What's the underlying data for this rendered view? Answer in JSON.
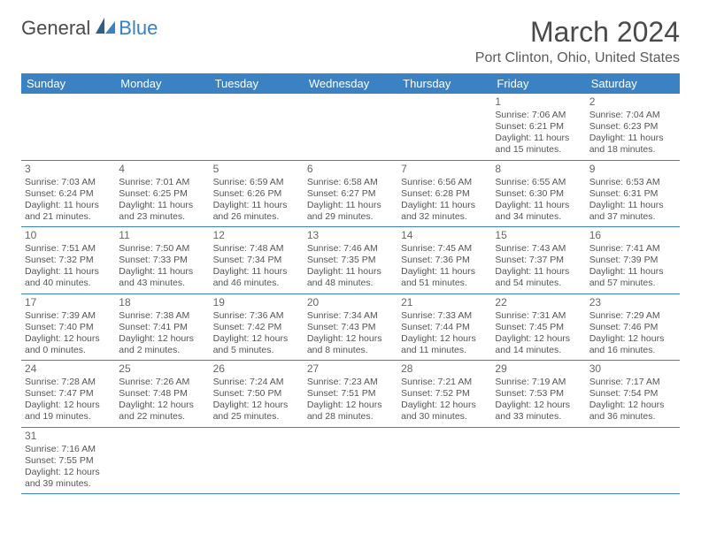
{
  "brand": {
    "text1": "General",
    "text2": "Blue"
  },
  "title": "March 2024",
  "location": "Port Clinton, Ohio, United States",
  "weekdays": [
    "Sunday",
    "Monday",
    "Tuesday",
    "Wednesday",
    "Thursday",
    "Friday",
    "Saturday"
  ],
  "colors": {
    "header_bg": "#3b82c4",
    "header_text": "#ffffff",
    "border": "#3b82c4",
    "title_color": "#4a4a4a",
    "text_color": "#555555"
  },
  "weeks": [
    [
      null,
      null,
      null,
      null,
      null,
      {
        "n": "1",
        "sr": "7:06 AM",
        "ss": "6:21 PM",
        "dl": "11 hours and 15 minutes."
      },
      {
        "n": "2",
        "sr": "7:04 AM",
        "ss": "6:23 PM",
        "dl": "11 hours and 18 minutes."
      }
    ],
    [
      {
        "n": "3",
        "sr": "7:03 AM",
        "ss": "6:24 PM",
        "dl": "11 hours and 21 minutes."
      },
      {
        "n": "4",
        "sr": "7:01 AM",
        "ss": "6:25 PM",
        "dl": "11 hours and 23 minutes."
      },
      {
        "n": "5",
        "sr": "6:59 AM",
        "ss": "6:26 PM",
        "dl": "11 hours and 26 minutes."
      },
      {
        "n": "6",
        "sr": "6:58 AM",
        "ss": "6:27 PM",
        "dl": "11 hours and 29 minutes."
      },
      {
        "n": "7",
        "sr": "6:56 AM",
        "ss": "6:28 PM",
        "dl": "11 hours and 32 minutes."
      },
      {
        "n": "8",
        "sr": "6:55 AM",
        "ss": "6:30 PM",
        "dl": "11 hours and 34 minutes."
      },
      {
        "n": "9",
        "sr": "6:53 AM",
        "ss": "6:31 PM",
        "dl": "11 hours and 37 minutes."
      }
    ],
    [
      {
        "n": "10",
        "sr": "7:51 AM",
        "ss": "7:32 PM",
        "dl": "11 hours and 40 minutes."
      },
      {
        "n": "11",
        "sr": "7:50 AM",
        "ss": "7:33 PM",
        "dl": "11 hours and 43 minutes."
      },
      {
        "n": "12",
        "sr": "7:48 AM",
        "ss": "7:34 PM",
        "dl": "11 hours and 46 minutes."
      },
      {
        "n": "13",
        "sr": "7:46 AM",
        "ss": "7:35 PM",
        "dl": "11 hours and 48 minutes."
      },
      {
        "n": "14",
        "sr": "7:45 AM",
        "ss": "7:36 PM",
        "dl": "11 hours and 51 minutes."
      },
      {
        "n": "15",
        "sr": "7:43 AM",
        "ss": "7:37 PM",
        "dl": "11 hours and 54 minutes."
      },
      {
        "n": "16",
        "sr": "7:41 AM",
        "ss": "7:39 PM",
        "dl": "11 hours and 57 minutes."
      }
    ],
    [
      {
        "n": "17",
        "sr": "7:39 AM",
        "ss": "7:40 PM",
        "dl": "12 hours and 0 minutes."
      },
      {
        "n": "18",
        "sr": "7:38 AM",
        "ss": "7:41 PM",
        "dl": "12 hours and 2 minutes."
      },
      {
        "n": "19",
        "sr": "7:36 AM",
        "ss": "7:42 PM",
        "dl": "12 hours and 5 minutes."
      },
      {
        "n": "20",
        "sr": "7:34 AM",
        "ss": "7:43 PM",
        "dl": "12 hours and 8 minutes."
      },
      {
        "n": "21",
        "sr": "7:33 AM",
        "ss": "7:44 PM",
        "dl": "12 hours and 11 minutes."
      },
      {
        "n": "22",
        "sr": "7:31 AM",
        "ss": "7:45 PM",
        "dl": "12 hours and 14 minutes."
      },
      {
        "n": "23",
        "sr": "7:29 AM",
        "ss": "7:46 PM",
        "dl": "12 hours and 16 minutes."
      }
    ],
    [
      {
        "n": "24",
        "sr": "7:28 AM",
        "ss": "7:47 PM",
        "dl": "12 hours and 19 minutes."
      },
      {
        "n": "25",
        "sr": "7:26 AM",
        "ss": "7:48 PM",
        "dl": "12 hours and 22 minutes."
      },
      {
        "n": "26",
        "sr": "7:24 AM",
        "ss": "7:50 PM",
        "dl": "12 hours and 25 minutes."
      },
      {
        "n": "27",
        "sr": "7:23 AM",
        "ss": "7:51 PM",
        "dl": "12 hours and 28 minutes."
      },
      {
        "n": "28",
        "sr": "7:21 AM",
        "ss": "7:52 PM",
        "dl": "12 hours and 30 minutes."
      },
      {
        "n": "29",
        "sr": "7:19 AM",
        "ss": "7:53 PM",
        "dl": "12 hours and 33 minutes."
      },
      {
        "n": "30",
        "sr": "7:17 AM",
        "ss": "7:54 PM",
        "dl": "12 hours and 36 minutes."
      }
    ],
    [
      {
        "n": "31",
        "sr": "7:16 AM",
        "ss": "7:55 PM",
        "dl": "12 hours and 39 minutes."
      },
      null,
      null,
      null,
      null,
      null,
      null
    ]
  ],
  "labels": {
    "sunrise": "Sunrise: ",
    "sunset": "Sunset: ",
    "daylight": "Daylight: "
  }
}
